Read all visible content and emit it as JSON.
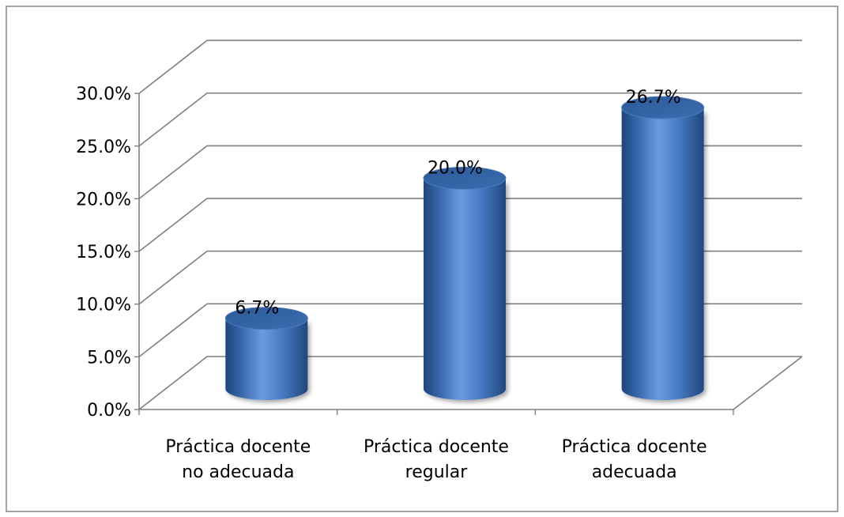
{
  "chart_data": {
    "type": "bar",
    "style": "3d-cylinder",
    "categories": [
      [
        "Práctica docente",
        "no adecuada"
      ],
      [
        "Práctica docente",
        "regular"
      ],
      [
        "Práctica docente",
        "adecuada"
      ]
    ],
    "values": [
      6.7,
      20.0,
      26.7
    ],
    "data_labels": [
      "6.7%",
      "20.0%",
      "26.7%"
    ],
    "y_ticks": [
      "0.0%",
      "5.0%",
      "10.0%",
      "15.0%",
      "20.0%",
      "25.0%",
      "30.0%"
    ],
    "ylim": [
      0,
      30
    ],
    "y_unit": "percent",
    "grid": true,
    "legend": "none",
    "colors": {
      "bar_body": "#3f74bc",
      "bar_highlight": "#6d9be0",
      "bar_shadow": "#21477e",
      "bar_top": "#2f5f9e",
      "grid": "#7f7f7f",
      "axis": "#7f7f7f",
      "text": "#000000",
      "frame": "#868686"
    }
  }
}
